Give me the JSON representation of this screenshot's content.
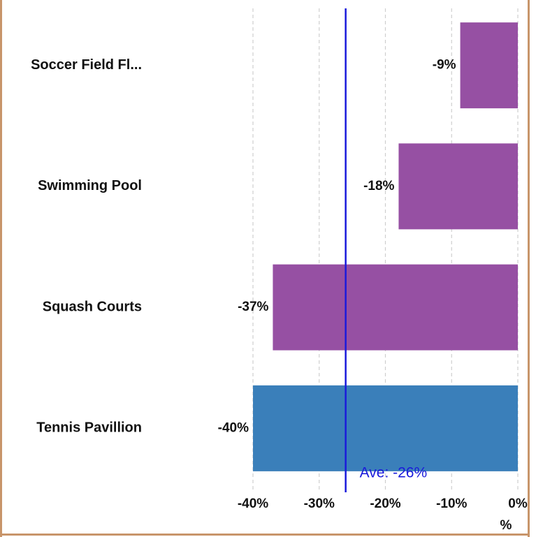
{
  "chart_data": {
    "type": "hbar",
    "categories": [
      "Soccer Field Fl...",
      "Swimming Pool",
      "Squash Courts",
      "Tennis Pavillion"
    ],
    "values": [
      -8.7,
      -18,
      -37,
      -40
    ],
    "value_labels": [
      "-9%",
      "-18%",
      "-37%",
      "-40%"
    ],
    "colors": [
      "#9650a3",
      "#9650a3",
      "#9650a3",
      "#3a7fba"
    ],
    "xlim": [
      -40,
      0
    ],
    "xticks": [
      {
        "value": -40,
        "label": "-40%"
      },
      {
        "value": -30,
        "label": "-30%"
      },
      {
        "value": -20,
        "label": "-20%"
      },
      {
        "value": -10,
        "label": "-10%"
      },
      {
        "value": 0,
        "label": "0%"
      }
    ],
    "xlabel": "%",
    "grid": true,
    "reference_line": {
      "value": -26,
      "label": "Ave: -26%",
      "color": "#1a1adb"
    }
  }
}
